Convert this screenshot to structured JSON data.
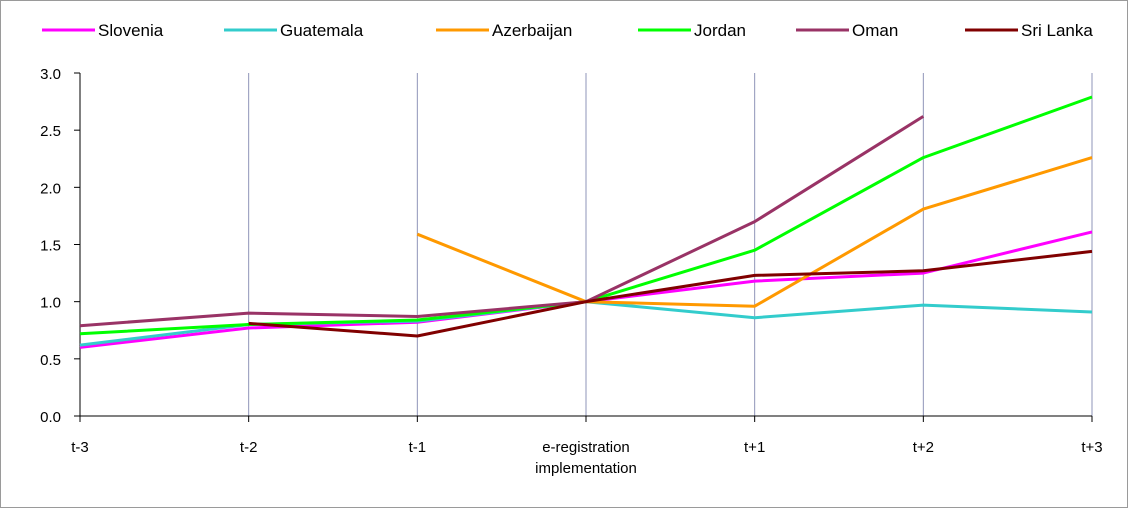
{
  "chart_data": {
    "type": "line",
    "title": "",
    "xlabel": "",
    "ylabel": "",
    "categories": [
      "t-3",
      "t-2",
      "t-1",
      "e-registration implementation",
      "t+1",
      "t+2",
      "t+3"
    ],
    "category_lines": [
      [
        "t-3"
      ],
      [
        "t-2"
      ],
      [
        "t-1"
      ],
      [
        "e-registration",
        "implementation"
      ],
      [
        "t+1"
      ],
      [
        "t+2"
      ],
      [
        "t+3"
      ]
    ],
    "ylim": [
      0,
      3.0
    ],
    "yticks": [
      "0.0",
      "0.5",
      "1.0",
      "1.5",
      "2.0",
      "2.5",
      "3.0"
    ],
    "grid": "vertical",
    "legend": "top",
    "series": [
      {
        "name": "Slovenia",
        "color": "#ff00ff",
        "values": [
          0.6,
          0.77,
          0.82,
          1.0,
          1.18,
          1.25,
          1.61
        ]
      },
      {
        "name": "Guatemala",
        "color": "#33cccc",
        "values": [
          0.62,
          0.8,
          0.83,
          1.0,
          0.86,
          0.97,
          0.91
        ]
      },
      {
        "name": "Azerbaijan",
        "color": "#ff9900",
        "values": [
          null,
          null,
          1.59,
          1.0,
          0.96,
          1.81,
          2.26
        ]
      },
      {
        "name": "Jordan",
        "color": "#00ff00",
        "values": [
          0.72,
          0.8,
          0.84,
          1.0,
          1.45,
          2.26,
          2.79
        ]
      },
      {
        "name": "Oman",
        "color": "#993366",
        "values": [
          0.79,
          0.9,
          0.87,
          1.0,
          1.7,
          2.62,
          null
        ]
      },
      {
        "name": "Sri Lanka",
        "color": "#800000",
        "values": [
          null,
          0.81,
          0.7,
          1.0,
          1.23,
          1.27,
          1.44
        ]
      }
    ]
  }
}
